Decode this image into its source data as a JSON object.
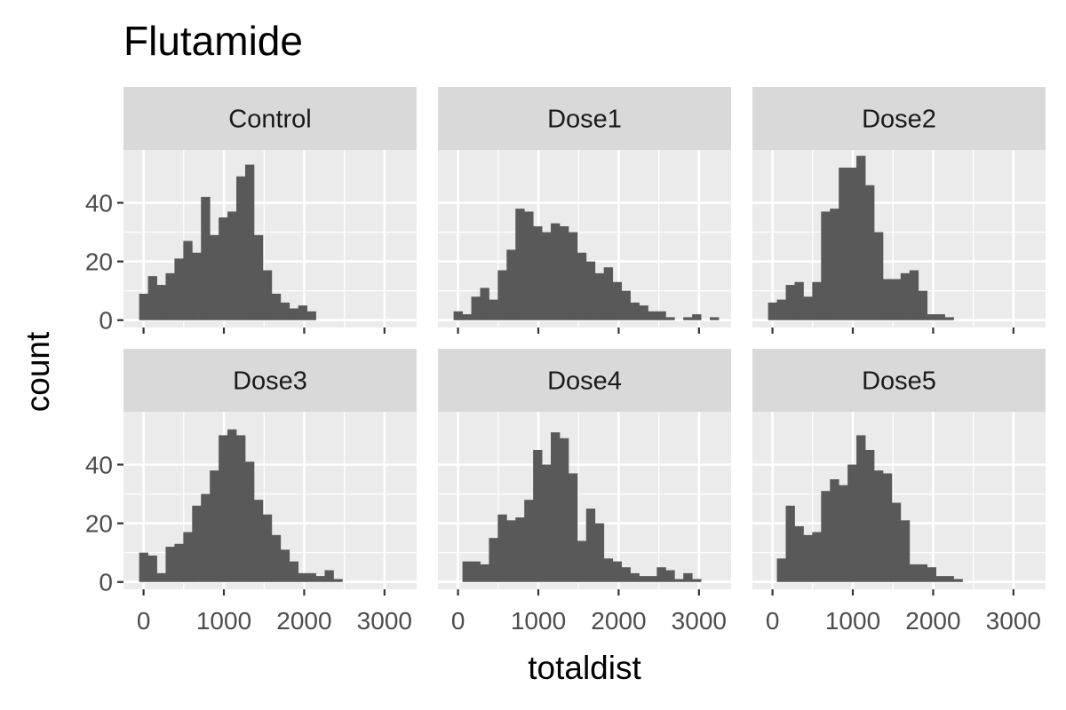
{
  "chart_data": {
    "type": "bar",
    "title": "Flutamide",
    "xlabel": "totaldist",
    "ylabel": "count",
    "xlim": [
      -250,
      3400
    ],
    "ylim": [
      -2.5,
      58
    ],
    "x_ticks": [
      0,
      1000,
      2000,
      3000
    ],
    "x_tick_labels": [
      "0",
      "1000",
      "2000",
      "3000"
    ],
    "y_ticks": [
      0,
      20,
      40
    ],
    "y_tick_labels": [
      "0",
      "20",
      "40"
    ],
    "bin_width": 110,
    "bin_centers": [
      0,
      110,
      220,
      330,
      440,
      550,
      660,
      770,
      880,
      990,
      1100,
      1210,
      1320,
      1430,
      1540,
      1650,
      1760,
      1870,
      1980,
      2090,
      2200,
      2310,
      2420,
      2530,
      2640,
      2750,
      2860,
      2970,
      3080,
      3190
    ],
    "grid": true,
    "panels": [
      {
        "name": "Control",
        "values": [
          9,
          15,
          12,
          16,
          21,
          27,
          23,
          42,
          29,
          35,
          37,
          49,
          53,
          29,
          17,
          9,
          6,
          4,
          5,
          3,
          0,
          0,
          0,
          0,
          0,
          0,
          0,
          0,
          0,
          0
        ]
      },
      {
        "name": "Dose1",
        "values": [
          3,
          2,
          8,
          11,
          7,
          17,
          24,
          38,
          37,
          32,
          30,
          33,
          32,
          30,
          23,
          20,
          16,
          18,
          13,
          10,
          6,
          5,
          3,
          3,
          1,
          0,
          1,
          2,
          0,
          1
        ]
      },
      {
        "name": "Dose2",
        "values": [
          6,
          7,
          12,
          13,
          8,
          13,
          37,
          38,
          52,
          52,
          56,
          46,
          30,
          14,
          14,
          16,
          17,
          10,
          2,
          2,
          1,
          0,
          0,
          0,
          0,
          0,
          0,
          0,
          0,
          0
        ]
      },
      {
        "name": "Dose3",
        "values": [
          10,
          9,
          3,
          12,
          13,
          17,
          26,
          30,
          38,
          50,
          52,
          50,
          41,
          28,
          23,
          16,
          11,
          7,
          3,
          3,
          2,
          4,
          1,
          0,
          0,
          0,
          0,
          0,
          0,
          0
        ]
      },
      {
        "name": "Dose4",
        "values": [
          0,
          7,
          7,
          6,
          15,
          23,
          21,
          22,
          28,
          45,
          40,
          51,
          49,
          37,
          14,
          25,
          20,
          8,
          7,
          5,
          3,
          2,
          2,
          5,
          4,
          1,
          3,
          1,
          0,
          0
        ]
      },
      {
        "name": "Dose5",
        "values": [
          0,
          8,
          26,
          19,
          16,
          17,
          31,
          35,
          33,
          40,
          50,
          45,
          38,
          37,
          27,
          21,
          6,
          6,
          5,
          2,
          2,
          1,
          0,
          0,
          0,
          0,
          0,
          0,
          0,
          0
        ]
      }
    ]
  }
}
